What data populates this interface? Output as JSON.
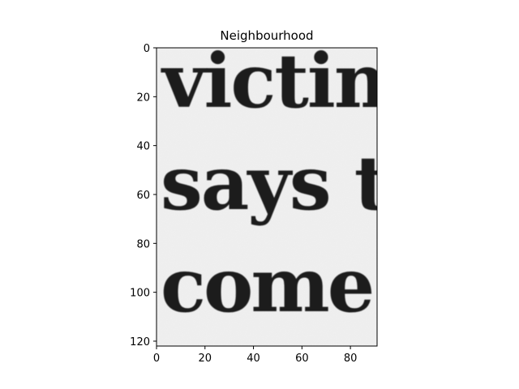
{
  "chart_data": {
    "type": "image",
    "title": "Neighbourhood",
    "xlabel": "",
    "ylabel": "",
    "xlim": [
      0,
      91
    ],
    "ylim": [
      122,
      0
    ],
    "grid": false,
    "xticks": [
      0,
      20,
      40,
      60,
      80
    ],
    "yticks": [
      0,
      20,
      40,
      60,
      80,
      100,
      120
    ],
    "image_text_lines": [
      "victim",
      "says t",
      "come"
    ]
  },
  "colors": {
    "background": "#ffffff",
    "paper": "#f1f1f1",
    "ink": "#1c1c1c",
    "axis": "#000000"
  }
}
